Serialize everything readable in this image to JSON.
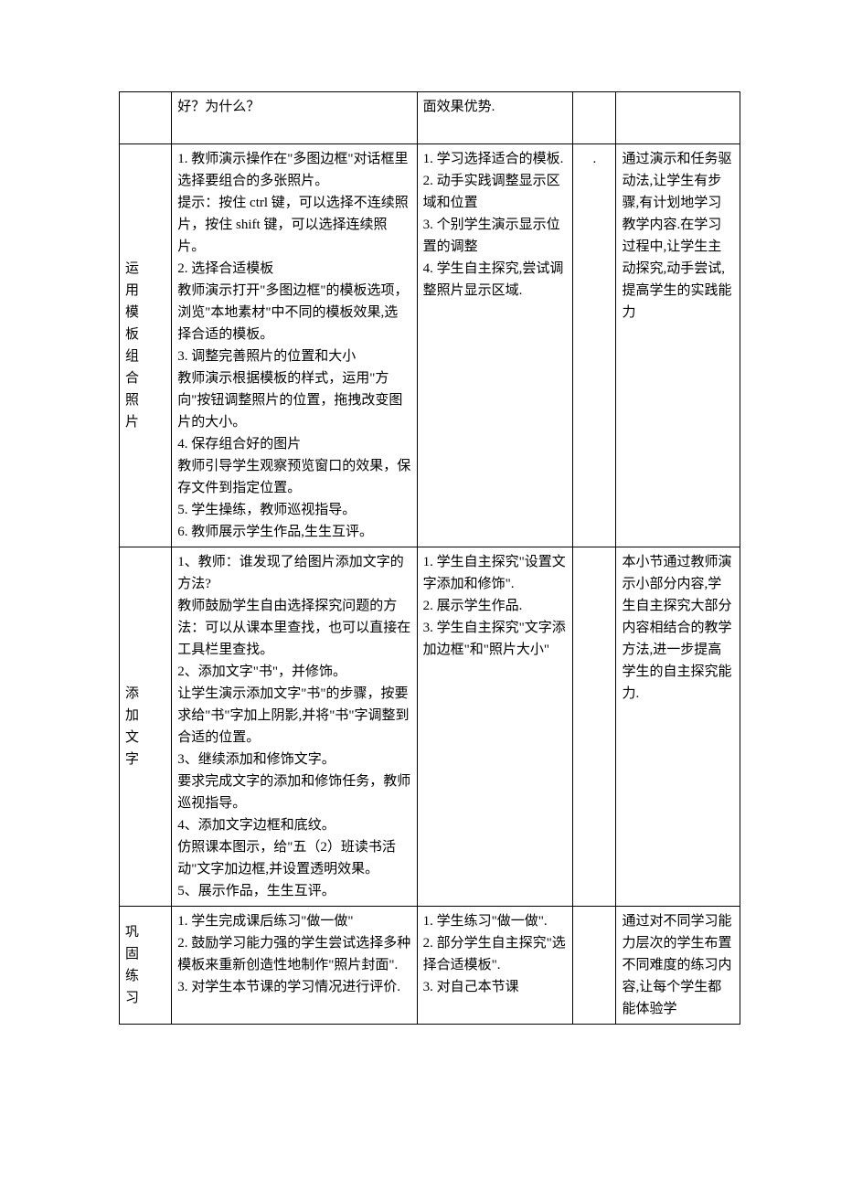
{
  "table": {
    "row0": {
      "c1": "",
      "c2": "好？为什么？",
      "c3": "面效果优势.",
      "c4": "",
      "c5": ""
    },
    "row1": {
      "label_0": "运",
      "label_1": "用",
      "label_2": "模",
      "label_3": "板",
      "label_4": "组",
      "label_5": "合",
      "label_6": "照",
      "label_7": "片",
      "c2": "1. 教师演示操作在\"多图边框\"对话框里选择要组合的多张照片。\n提示：按住 ctrl 键，可以选择不连续照片，按住 shift 键，可以选择连续照片。\n2. 选择合适模板\n教师演示打开\"多图边框\"的模板选项，浏览\"本地素材\"中不同的模板效果,选择合适的模板。\n3. 调整完善照片的位置和大小\n教师演示根据模板的样式，运用\"方向\"按钮调整照片的位置，拖拽改变图片的大小。\n4. 保存组合好的图片\n教师引导学生观察预览窗口的效果，保存文件到指定位置。\n5. 学生操练，教师巡视指导。\n6. 教师展示学生作品,生生互评。",
      "c3": "1. 学习选择适合的模板.\n2. 动手实践调整显示区域和位置\n3. 个别学生演示显示位置的调整\n4. 学生自主探究,尝试调整照片显示区域.",
      "c4": ".",
      "c5": "通过演示和任务驱动法,让学生有步骤,有计划地学习教学内容.在学习过程中,让学生主动探究,动手尝试,提高学生的实践能力"
    },
    "row2": {
      "label_0": "添",
      "label_1": "加",
      "label_2": "文",
      "label_3": "字",
      "c2": "1、教师：谁发现了给图片添加文字的方法?\n教师鼓励学生自由选择探究问题的方法：可以从课本里查找，也可以直接在工具栏里查找。\n2、添加文字\"书\"，并修饰。\n让学生演示添加文字\"书\"的步骤，按要求给\"书\"字加上阴影,并将\"书\"字调整到合适的位置。\n3、继续添加和修饰文字。\n要求完成文字的添加和修饰任务，教师巡视指导。\n4、添加文字边框和底纹。\n仿照课本图示，给\"五（2）班读书活动\"文字加边框,并设置透明效果。\n5、展示作品，生生互评。",
      "c3": "1. 学生自主探究\"设置文字添加和修饰\".\n2. 展示学生作品.\n3. 学生自主探究\"文字添加边框\"和\"照片大小\"",
      "c4": "",
      "c5": "本小节通过教师演示小部分内容,学生自主探究大部分内容相结合的教学方法,进一步提高学生的自主探究能力."
    },
    "row3": {
      "label_0": "巩",
      "label_1": "固",
      "label_2": "练",
      "label_3": "习",
      "c2": "1. 学生完成课后练习\"做一做\"\n2. 鼓励学习能力强的学生尝试选择多种模板来重新创造性地制作\"照片封面\".\n3. 对学生本节课的学习情况进行评价.",
      "c3": "1. 学生练习\"做一做\".\n2. 部分学生自主探究\"选择合适模板\".\n3. 对自己本节课",
      "c4": "",
      "c5": "通过对不同学习能力层次的学生布置不同难度的练习内容,让每个学生都能体验学"
    }
  }
}
